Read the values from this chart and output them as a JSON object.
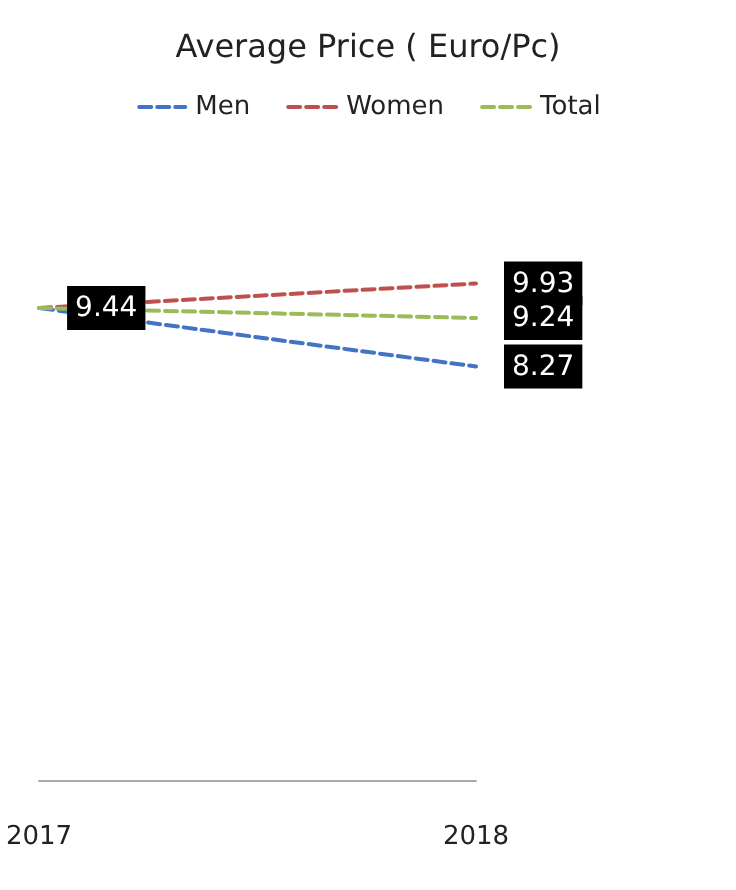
{
  "chart_data": {
    "type": "line",
    "title": "Average Price ( Euro/Pc)",
    "categories": [
      "2017",
      "2018"
    ],
    "series": [
      {
        "name": "Men",
        "color": "#4472c4",
        "values": [
          9.44,
          8.27
        ],
        "value_labels": [
          null,
          "8.27"
        ]
      },
      {
        "name": "Women",
        "color": "#c0504d",
        "values": [
          9.44,
          9.93
        ],
        "value_labels": [
          null,
          "9.93"
        ]
      },
      {
        "name": "Total",
        "color": "#9bbb59",
        "values": [
          9.44,
          9.24
        ],
        "value_labels": [
          "9.44",
          "9.24"
        ]
      }
    ],
    "tick_labels": "x",
    "legend": "top",
    "line_style": "dashed",
    "marker": "none",
    "grid": false
  }
}
